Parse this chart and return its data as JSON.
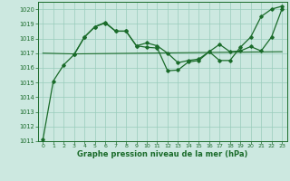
{
  "xlabel": "Graphe pression niveau de la mer (hPa)",
  "background_color": "#cce8e0",
  "grid_color": "#99ccbb",
  "line_color": "#1a6b2a",
  "ylim": [
    1011,
    1020.5
  ],
  "xlim": [
    -0.5,
    23.5
  ],
  "yticks": [
    1011,
    1012,
    1013,
    1014,
    1015,
    1016,
    1017,
    1018,
    1019,
    1020
  ],
  "xticks": [
    0,
    1,
    2,
    3,
    4,
    5,
    6,
    7,
    8,
    9,
    10,
    11,
    12,
    13,
    14,
    15,
    16,
    17,
    18,
    19,
    20,
    21,
    22,
    23
  ],
  "line1_x": [
    0,
    1,
    2,
    3,
    4,
    5,
    6,
    7,
    8,
    9,
    10,
    11,
    12,
    13,
    14,
    15,
    16,
    17,
    18,
    19,
    20,
    21,
    22,
    23
  ],
  "line1_y": [
    1011.1,
    1015.1,
    1016.2,
    1016.9,
    1018.1,
    1018.8,
    1019.1,
    1018.5,
    1018.5,
    1017.5,
    1017.4,
    1017.35,
    1015.8,
    1015.85,
    1016.4,
    1016.5,
    1017.1,
    1016.5,
    1016.5,
    1017.4,
    1018.1,
    1019.5,
    1020.0,
    1020.2
  ],
  "line2_x": [
    3,
    4,
    5,
    6,
    7,
    8,
    9,
    10,
    11,
    12,
    13,
    14,
    15,
    16,
    17,
    18,
    19,
    20,
    21,
    22,
    23
  ],
  "line2_y": [
    1016.9,
    1018.1,
    1018.8,
    1019.05,
    1018.5,
    1018.5,
    1017.5,
    1017.7,
    1017.5,
    1017.0,
    1016.35,
    1016.5,
    1016.6,
    1017.1,
    1017.6,
    1017.1,
    1017.15,
    1017.45,
    1017.15,
    1018.1,
    1020.0
  ],
  "line3_x": [
    0,
    3,
    23
  ],
  "line3_y": [
    1017.0,
    1016.95,
    1017.1
  ]
}
